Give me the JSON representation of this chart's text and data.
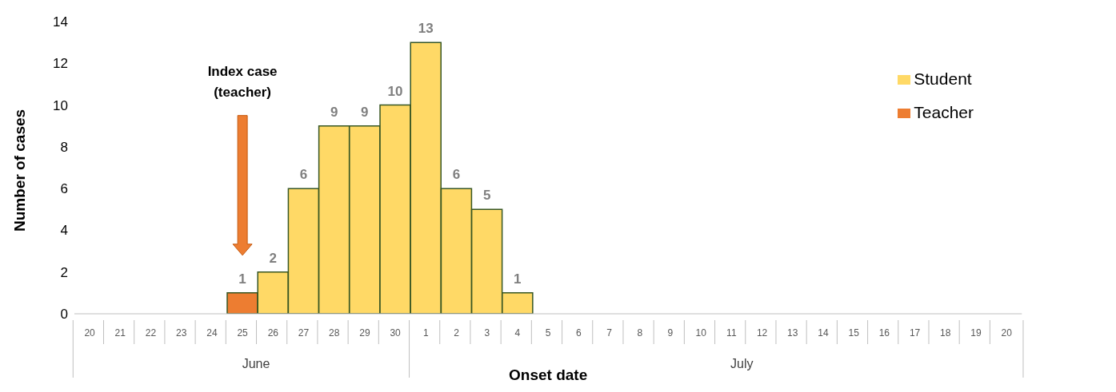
{
  "chart_data": {
    "type": "bar",
    "stacked": true,
    "ylabel": "Number of cases",
    "xlabel": "Onset date",
    "categories": [
      "20",
      "21",
      "22",
      "23",
      "24",
      "25",
      "26",
      "27",
      "28",
      "29",
      "30",
      "1",
      "2",
      "3",
      "4",
      "5",
      "6",
      "7",
      "8",
      "9",
      "10",
      "11",
      "12",
      "13",
      "14",
      "15",
      "16",
      "17",
      "18",
      "19",
      "20"
    ],
    "series": [
      {
        "name": "Teacher",
        "color": "#ed7d31",
        "values": [
          null,
          null,
          null,
          null,
          null,
          1,
          null,
          null,
          null,
          null,
          null,
          null,
          null,
          null,
          null,
          null,
          null,
          null,
          null,
          null,
          null,
          null,
          null,
          null,
          null,
          null,
          null,
          null,
          null,
          null,
          null
        ]
      },
      {
        "name": "Student",
        "color": "#ffd966",
        "values": [
          null,
          null,
          null,
          null,
          null,
          null,
          2,
          6,
          9,
          9,
          10,
          13,
          6,
          5,
          1,
          null,
          null,
          null,
          null,
          null,
          null,
          null,
          null,
          null,
          null,
          null,
          null,
          null,
          null,
          null,
          null
        ]
      }
    ],
    "ylim": [
      0,
      14
    ],
    "yticks": [
      0,
      2,
      4,
      6,
      8,
      10,
      12,
      14
    ],
    "legend": "top right",
    "grid": false,
    "data_labels": true,
    "annotations": [
      "Index case (teacher)",
      "June",
      "July"
    ]
  }
}
